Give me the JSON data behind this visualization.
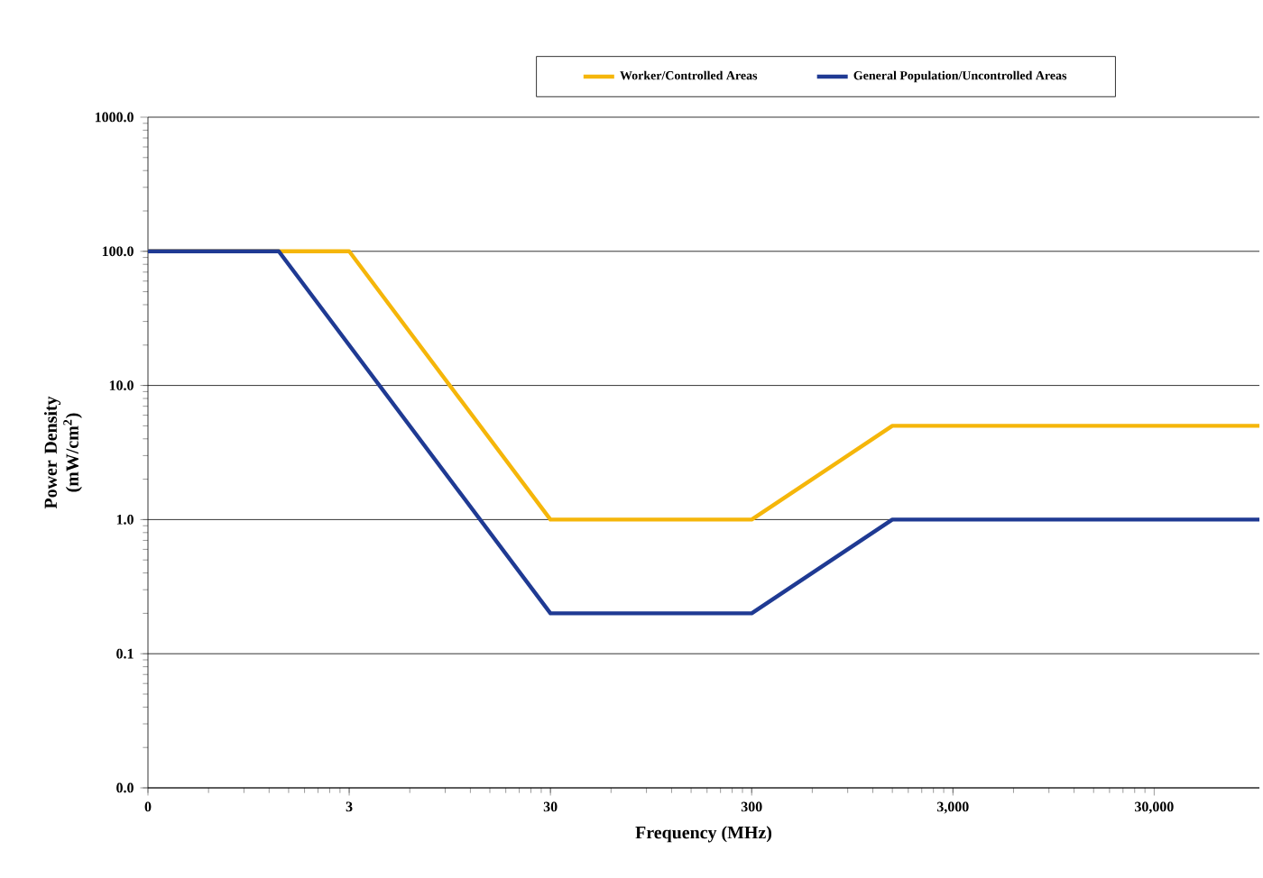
{
  "chart_data": {
    "type": "line",
    "xlabel": "Frequency (MHz)",
    "ylabel": "Power Density (mW/cm$^{2}$)",
    "log": "xy",
    "xlim": [
      0.3,
      100000
    ],
    "ylim": [
      0.01,
      1000
    ],
    "xticks": [
      {
        "value": 0.3,
        "label": "0"
      },
      3,
      30,
      300,
      {
        "value": 3000,
        "label": "3,000"
      },
      {
        "value": 30000,
        "label": "30,000"
      }
    ],
    "yticks": [
      {
        "value": 0.01,
        "label": "0.0"
      },
      0.1,
      {
        "value": 1,
        "label": "1.0"
      },
      {
        "value": 10,
        "label": "10.0"
      },
      {
        "value": 100,
        "label": "100.0"
      },
      {
        "value": 1000,
        "label": "1000.0"
      }
    ],
    "grid": "y",
    "legend": "top",
    "marker": "none",
    "line_style": "solid",
    "series": [
      {
        "name": "Worker/Controlled Areas",
        "color": "#f5b60a",
        "x": [
          0.3,
          3,
          30,
          300,
          1500,
          100000
        ],
        "values": [
          100,
          100,
          1,
          1,
          5,
          5
        ]
      },
      {
        "name": "General Population/Uncontrolled Areas",
        "color": "#1f3a93",
        "x": [
          0.3,
          1.34,
          30,
          300,
          1500,
          100000
        ],
        "values": [
          100,
          100,
          0.2,
          0.2,
          1,
          1
        ]
      }
    ]
  }
}
